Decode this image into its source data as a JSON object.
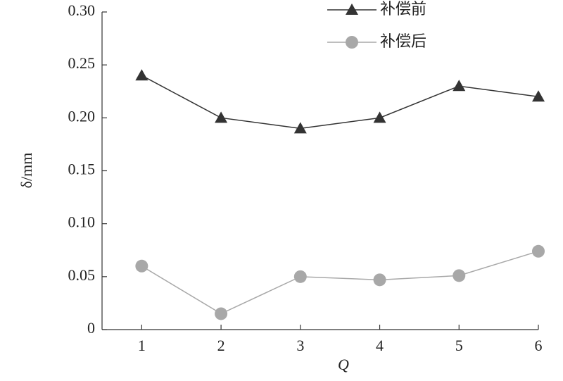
{
  "chart_data": {
    "type": "line",
    "x_label": "Q",
    "y_label": "δ/mm",
    "x": [
      1,
      2,
      3,
      4,
      5,
      6
    ],
    "series": [
      {
        "name": "补偿前",
        "color": "#333333",
        "marker": "triangle",
        "values": [
          0.24,
          0.2,
          0.19,
          0.2,
          0.23,
          0.22
        ]
      },
      {
        "name": "补偿后",
        "color": "#a8a8a8",
        "marker": "circle",
        "values": [
          0.06,
          0.015,
          0.05,
          0.047,
          0.051,
          0.074
        ]
      }
    ],
    "xlim": [
      0.5,
      6
    ],
    "xticks": [
      1,
      2,
      3,
      4,
      5,
      6
    ],
    "ylim": [
      0,
      0.3
    ],
    "yticks": [
      0,
      0.05,
      {
        "value": 0.1,
        "label": "0.10"
      },
      0.15,
      {
        "value": 0.2,
        "label": "0.20"
      },
      0.25,
      {
        "value": 0.3,
        "label": "0.30"
      }
    ],
    "legend": "upper right"
  }
}
